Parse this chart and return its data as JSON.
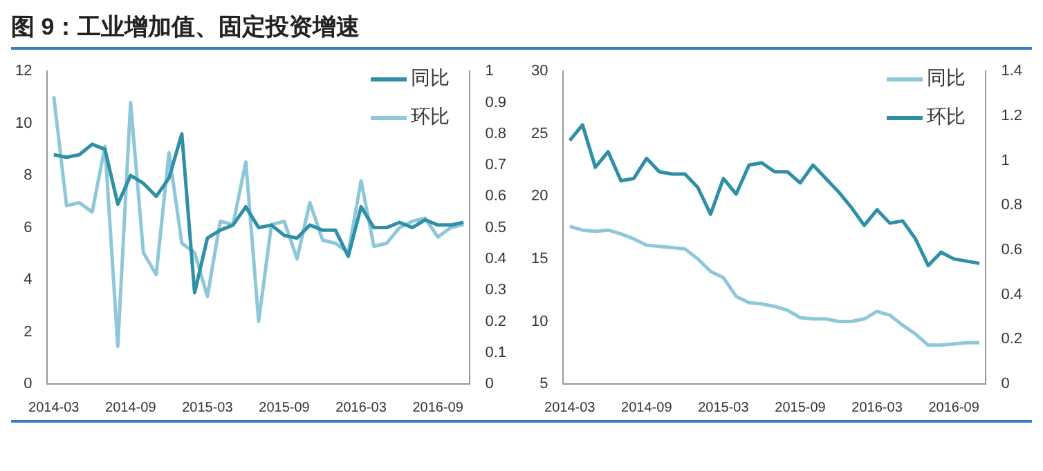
{
  "chart_data": [
    {
      "type": "line",
      "title": "图 9：工业增加值、固定投资增速",
      "categories": [
        "2014-03",
        null,
        null,
        null,
        null,
        null,
        "2014-09",
        null,
        null,
        null,
        null,
        null,
        "2015-03",
        null,
        null,
        null,
        null,
        null,
        "2015-09",
        null,
        null,
        null,
        null,
        null,
        "2016-03",
        null,
        null,
        null,
        null,
        null,
        "2016-09",
        null,
        null
      ],
      "series": [
        {
          "name": "同比",
          "color": "#2e8fa6",
          "values": [
            8.8,
            8.7,
            8.8,
            9.2,
            9.0,
            6.9,
            8.0,
            7.7,
            7.2,
            7.9,
            9.6,
            3.5,
            5.6,
            5.9,
            6.1,
            6.8,
            6.0,
            6.1,
            5.7,
            5.6,
            6.1,
            5.9,
            5.9,
            4.9,
            6.8,
            6.0,
            6.0,
            6.2,
            6.0,
            6.3,
            6.1,
            6.1,
            6.2
          ]
        },
        {
          "name": "环比",
          "color": "#8ec8d8",
          "axis": "y2",
          "values": [
            0.92,
            0.57,
            0.58,
            0.55,
            0.76,
            0.12,
            0.9,
            0.42,
            0.35,
            0.74,
            0.45,
            0.42,
            0.28,
            0.52,
            0.51,
            0.71,
            0.2,
            0.51,
            0.52,
            0.4,
            0.58,
            0.46,
            0.45,
            0.42,
            0.65,
            0.44,
            0.45,
            0.5,
            0.52,
            0.53,
            0.47,
            0.5,
            0.51
          ]
        }
      ],
      "ylim": [
        0,
        12
      ],
      "yticks": [
        0,
        2,
        4,
        6,
        8,
        10,
        12
      ],
      "y2lim": [
        0,
        1
      ],
      "y2ticks": [
        0,
        0.1,
        0.2,
        0.3,
        0.4,
        0.5,
        0.6,
        0.7,
        0.8,
        0.9,
        1
      ],
      "legend": "top right",
      "grid": false,
      "marker": "none",
      "line_style": "solid"
    },
    {
      "type": "line",
      "categories": [
        "2014-03",
        null,
        null,
        null,
        null,
        null,
        "2014-09",
        null,
        null,
        null,
        null,
        null,
        "2015-03",
        null,
        null,
        null,
        null,
        null,
        "2015-09",
        null,
        null,
        null,
        null,
        null,
        "2016-03",
        null,
        null,
        null,
        null,
        null,
        "2016-09",
        null,
        null
      ],
      "series": [
        {
          "name": "同比",
          "color": "#8ec8d8",
          "values": [
            17.6,
            17.3,
            17.2,
            17.3,
            17.0,
            16.6,
            16.1,
            16.0,
            15.9,
            15.8,
            15.0,
            14.0,
            13.5,
            12.0,
            11.5,
            11.4,
            11.2,
            10.9,
            10.3,
            10.2,
            10.2,
            10.0,
            10.0,
            10.2,
            10.8,
            10.5,
            9.7,
            9.0,
            8.1,
            8.1,
            8.2,
            8.3,
            8.3
          ]
        },
        {
          "name": "环比",
          "color": "#2e8fa6",
          "axis": "y2",
          "values": [
            1.09,
            1.16,
            0.97,
            1.04,
            0.91,
            0.92,
            1.01,
            0.95,
            0.94,
            0.94,
            0.88,
            0.76,
            0.92,
            0.85,
            0.98,
            0.99,
            0.95,
            0.95,
            0.9,
            0.98,
            0.92,
            0.86,
            0.79,
            0.71,
            0.78,
            0.72,
            0.73,
            0.65,
            0.53,
            0.59,
            0.56,
            0.55,
            0.54
          ]
        }
      ],
      "ylim": [
        5,
        30
      ],
      "yticks": [
        5,
        10,
        15,
        20,
        25,
        30
      ],
      "y2lim": [
        0,
        1.4
      ],
      "y2ticks": [
        0,
        0.2,
        0.4,
        0.6,
        0.8,
        1,
        1.2,
        1.4
      ],
      "legend": "top right",
      "grid": false,
      "marker": "none",
      "line_style": "solid"
    }
  ]
}
